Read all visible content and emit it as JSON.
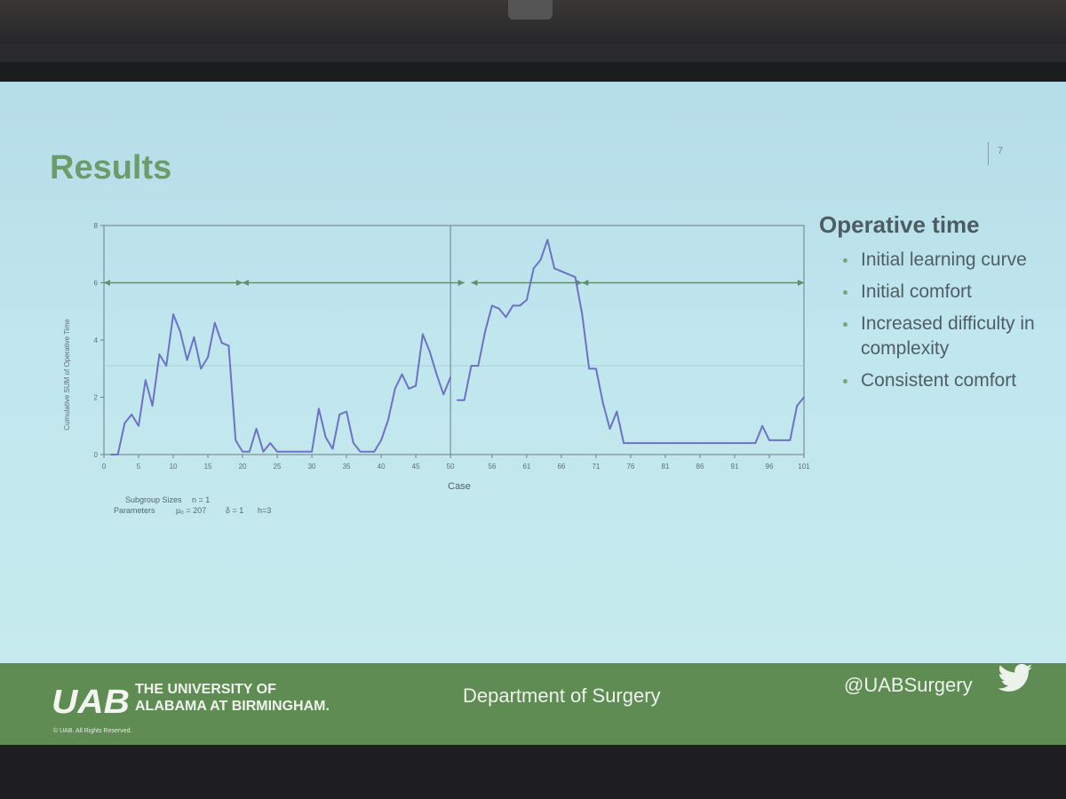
{
  "slide": {
    "title": "Results",
    "page_number": "7"
  },
  "chart_data": {
    "type": "line",
    "ylabel": "Cumulative SUM of Operative Time",
    "xlabel": "Case",
    "x_ticks": [
      "0",
      "5",
      "10",
      "15",
      "20",
      "25",
      "30",
      "35",
      "40",
      "45",
      "50",
      "56",
      "61",
      "66",
      "71",
      "76",
      "81",
      "86",
      "91",
      "96",
      "101"
    ],
    "y_ticks": [
      "0",
      "2",
      "4",
      "6",
      "8"
    ],
    "ylim": [
      0,
      8
    ],
    "xlim": [
      0,
      101
    ],
    "divider_x": 50,
    "center_line_y": 3.1,
    "grid": false,
    "x": [
      1,
      2,
      3,
      4,
      5,
      6,
      7,
      8,
      9,
      10,
      11,
      12,
      13,
      14,
      15,
      16,
      17,
      18,
      19,
      20,
      21,
      22,
      23,
      24,
      25,
      26,
      27,
      28,
      29,
      30,
      31,
      32,
      33,
      34,
      35,
      36,
      37,
      38,
      39,
      40,
      41,
      42,
      43,
      44,
      45,
      46,
      47,
      48,
      49,
      50,
      51,
      52,
      53,
      54,
      55,
      56,
      57,
      58,
      59,
      60,
      61,
      62,
      63,
      64,
      65,
      66,
      67,
      68,
      69,
      70,
      71,
      72,
      73,
      74,
      75,
      76,
      77,
      78,
      79,
      80,
      81,
      82,
      83,
      84,
      85,
      86,
      87,
      88,
      89,
      90,
      91,
      92,
      93,
      94,
      95,
      96,
      97,
      98,
      99,
      100,
      101
    ],
    "values": [
      0,
      0,
      1.1,
      1.4,
      1.0,
      2.6,
      1.7,
      3.5,
      3.1,
      4.9,
      4.3,
      3.3,
      4.1,
      3.0,
      3.4,
      4.6,
      3.9,
      3.8,
      0.5,
      0.1,
      0.1,
      0.9,
      0.1,
      0.4,
      0.1,
      0.1,
      0.1,
      0.1,
      0.1,
      0.1,
      1.6,
      0.6,
      0.2,
      1.4,
      1.5,
      0.4,
      0.1,
      0.1,
      0.1,
      0.5,
      1.2,
      2.3,
      2.8,
      2.3,
      2.4,
      4.2,
      3.6,
      2.8,
      2.1,
      2.7,
      1.9,
      1.9,
      3.1,
      3.1,
      4.3,
      5.2,
      5.1,
      4.8,
      5.2,
      5.2,
      5.4,
      6.5,
      6.8,
      7.5,
      6.5,
      6.4,
      6.3,
      6.2,
      4.9,
      3.0,
      3.0,
      1.8,
      0.9,
      1.5,
      0.4,
      0.4,
      0.4,
      0.4,
      0.4,
      0.4,
      0.4,
      0.4,
      0.4,
      0.4,
      0.4,
      0.4,
      0.4,
      0.4,
      0.4,
      0.4,
      0.4,
      0.4,
      0.4,
      0.4,
      1.0,
      0.5,
      0.5,
      0.5,
      0.5,
      1.7,
      2.0
    ],
    "phases": [
      {
        "label": "Initial learning curve",
        "start": 0,
        "end": 20
      },
      {
        "label": "Initial comfort",
        "start": 20,
        "end": 52
      },
      {
        "label": "Increased difficulty in complexity",
        "start": 53,
        "end": 69
      },
      {
        "label": "Consistent comfort",
        "start": 69,
        "end": 101
      }
    ],
    "phase_y": 6,
    "subgroup_label": "Subgroup Sizes",
    "subgroup_value": "n = 1",
    "parameters_label": "Parameters",
    "param_mu": "µ₀ = 207",
    "param_delta": "δ = 1",
    "param_h": "h=3",
    "line_color": "#6d72c4",
    "arrow_color": "#5e9070"
  },
  "side": {
    "heading": "Operative time",
    "items": [
      {
        "text": "Initial learning curve"
      },
      {
        "text": "Initial comfort"
      },
      {
        "text": "Increased difficulty in complexity"
      },
      {
        "text": "Consistent comfort"
      }
    ]
  },
  "footer": {
    "logo_text": "UAB",
    "university_line1": "THE UNIVERSITY OF",
    "university_line2": "ALABAMA AT BIRMINGHAM.",
    "copyright": "© UAB. All Rights Reserved.",
    "department": "Department of Surgery",
    "handle": "@UABSurgery",
    "twitter_icon": "twitter-bird-icon",
    "bg_color": "#5e8c52"
  }
}
